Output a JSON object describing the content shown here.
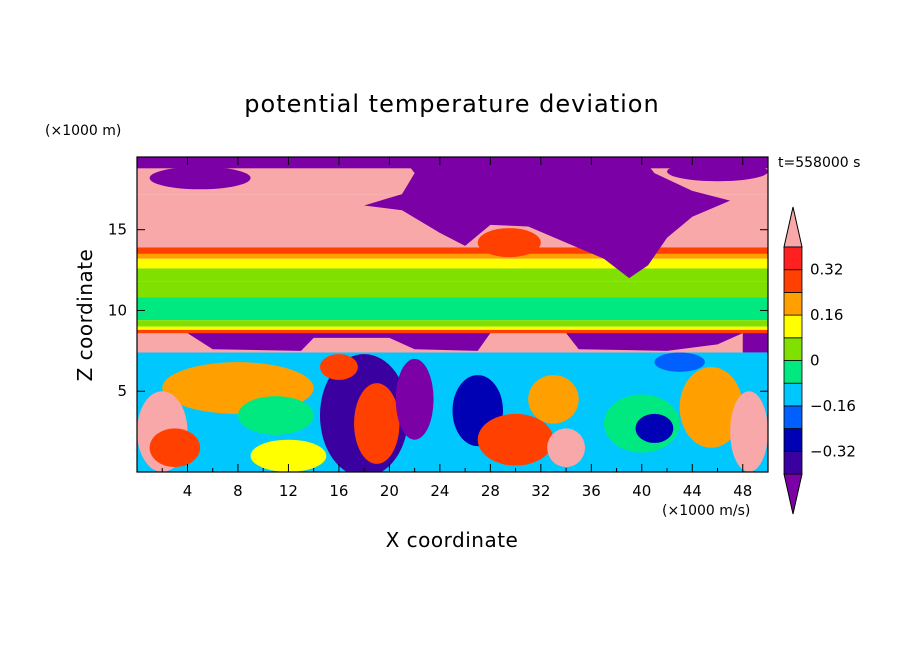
{
  "chart_data": {
    "type": "heatmap",
    "title": "potential temperature deviation",
    "xlabel": "X coordinate",
    "ylabel": "Z coordinate",
    "x_unit": "(×1000 m/s)",
    "y_unit": "(×1000 m)",
    "time_label": "t=558000 s",
    "xlim": [
      0,
      50
    ],
    "ylim": [
      0,
      19.5
    ],
    "x_ticks": [
      4,
      8,
      12,
      16,
      20,
      24,
      28,
      32,
      36,
      40,
      44,
      48
    ],
    "x_tick_labels": [
      "4",
      "8",
      "12",
      "16",
      "20",
      "24",
      "28",
      "32",
      "36",
      "40",
      "44",
      "48"
    ],
    "y_ticks": [
      5,
      10,
      15
    ],
    "y_tick_labels": [
      "5",
      "10",
      "15"
    ],
    "colorbar": {
      "levels": [
        -0.4,
        -0.32,
        -0.24,
        -0.16,
        -0.08,
        0,
        0.08,
        0.16,
        0.24,
        0.32,
        0.4
      ],
      "labels": [
        {
          "value": 0.32,
          "text": "0.32"
        },
        {
          "value": 0.16,
          "text": "0.16"
        },
        {
          "value": 0,
          "text": "0"
        },
        {
          "value": -0.16,
          "text": "−0.16"
        },
        {
          "value": -0.32,
          "text": "−0.32"
        }
      ],
      "colors": [
        "#7b00a6",
        "#3a00a0",
        "#0000b4",
        "#0060ff",
        "#00c8ff",
        "#00e880",
        "#80e000",
        "#ffff00",
        "#ffa000",
        "#ff4000",
        "#ff2020",
        "#f8a8a8"
      ]
    },
    "bands": [
      {
        "z0": 19.5,
        "z1": 17.2,
        "color": "#f8a8a8"
      },
      {
        "z0": 17.2,
        "z1": 13.9,
        "color": "#f8a8a8"
      },
      {
        "z0": 13.9,
        "z1": 13.5,
        "color": "#ff4000"
      },
      {
        "z0": 13.5,
        "z1": 13.2,
        "color": "#ffa000"
      },
      {
        "z0": 13.2,
        "z1": 12.6,
        "color": "#ffff00"
      },
      {
        "z0": 12.6,
        "z1": 11.8,
        "color": "#80e000"
      },
      {
        "z0": 11.8,
        "z1": 10.8,
        "color": "#80e000"
      },
      {
        "z0": 10.8,
        "z1": 9.4,
        "color": "#00e880"
      },
      {
        "z0": 9.4,
        "z1": 9.0,
        "color": "#80e000"
      },
      {
        "z0": 9.0,
        "z1": 8.8,
        "color": "#ffff00"
      },
      {
        "z0": 8.8,
        "z1": 8.6,
        "color": "#ff4000"
      },
      {
        "z0": 8.6,
        "z1": 7.4,
        "color": "#7b00a6"
      },
      {
        "z0": 7.4,
        "z1": 0,
        "color": "#00c8ff"
      }
    ],
    "regions": [
      {
        "type": "rect",
        "x0": 0,
        "x1": 50,
        "z0": 19.5,
        "z1": 18.8,
        "color": "#7b00a6"
      },
      {
        "type": "ellipse",
        "cx": 5,
        "cz": 18.2,
        "rx": 4,
        "rz": 0.7,
        "color": "#7b00a6"
      },
      {
        "type": "ellipse",
        "cx": 46,
        "cz": 18.6,
        "rx": 4,
        "rz": 0.6,
        "color": "#7b00a6"
      },
      {
        "type": "poly",
        "color": "#7b00a6",
        "points": [
          [
            21,
            19.5
          ],
          [
            40,
            19.5
          ],
          [
            41,
            18.5
          ],
          [
            44,
            17.4
          ],
          [
            47,
            16.8
          ],
          [
            44,
            15.8
          ],
          [
            42,
            14.5
          ],
          [
            40.5,
            12.8
          ],
          [
            39,
            12.0
          ],
          [
            37,
            13.2
          ],
          [
            34,
            14.2
          ],
          [
            31,
            15.2
          ],
          [
            28,
            15.3
          ],
          [
            26,
            14.0
          ],
          [
            24,
            14.8
          ],
          [
            21,
            16.2
          ],
          [
            18,
            16.5
          ],
          [
            21,
            17.2
          ],
          [
            22,
            18.5
          ]
        ]
      },
      {
        "type": "ellipse",
        "cx": 29.5,
        "cz": 14.2,
        "rx": 2.5,
        "rz": 0.9,
        "color": "#ff4000"
      },
      {
        "type": "poly",
        "color": "#f8a8a8",
        "points": [
          [
            0,
            8.6
          ],
          [
            4,
            8.6
          ],
          [
            6,
            7.6
          ],
          [
            13,
            7.5
          ],
          [
            14,
            8.3
          ],
          [
            20,
            8.3
          ],
          [
            22,
            7.6
          ],
          [
            27,
            7.5
          ],
          [
            28,
            8.6
          ],
          [
            34,
            8.6
          ],
          [
            35,
            7.6
          ],
          [
            42,
            7.5
          ],
          [
            46,
            7.9
          ],
          [
            48,
            8.6
          ],
          [
            48,
            7.4
          ],
          [
            0,
            7.4
          ]
        ]
      },
      {
        "type": "ellipse",
        "cx": 8,
        "cz": 5.2,
        "rx": 6,
        "rz": 1.6,
        "color": "#ffa000"
      },
      {
        "type": "ellipse",
        "cx": 11,
        "cz": 3.5,
        "rx": 3,
        "rz": 1.2,
        "color": "#00e880"
      },
      {
        "type": "ellipse",
        "cx": 2,
        "cz": 2.5,
        "rx": 2,
        "rz": 2.5,
        "color": "#f8a8a8"
      },
      {
        "type": "ellipse",
        "cx": 3,
        "cz": 1.5,
        "rx": 2,
        "rz": 1.2,
        "color": "#ff4000"
      },
      {
        "type": "ellipse",
        "cx": 12,
        "cz": 1.0,
        "rx": 3,
        "rz": 1.0,
        "color": "#ffff00"
      },
      {
        "type": "ellipse",
        "cx": 18,
        "cz": 3.5,
        "rx": 3.5,
        "rz": 3.8,
        "color": "#3a00a0"
      },
      {
        "type": "ellipse",
        "cx": 19,
        "cz": 3.0,
        "rx": 1.8,
        "rz": 2.5,
        "color": "#ff4000"
      },
      {
        "type": "ellipse",
        "cx": 22,
        "cz": 4.5,
        "rx": 1.5,
        "rz": 2.5,
        "color": "#7b00a6"
      },
      {
        "type": "ellipse",
        "cx": 16,
        "cz": 6.5,
        "rx": 1.5,
        "rz": 0.8,
        "color": "#ff4000"
      },
      {
        "type": "ellipse",
        "cx": 27,
        "cz": 3.8,
        "rx": 2,
        "rz": 2.2,
        "color": "#0000b4"
      },
      {
        "type": "ellipse",
        "cx": 30,
        "cz": 2.0,
        "rx": 3,
        "rz": 1.6,
        "color": "#ff4000"
      },
      {
        "type": "ellipse",
        "cx": 33,
        "cz": 4.5,
        "rx": 2,
        "rz": 1.5,
        "color": "#ffa000"
      },
      {
        "type": "ellipse",
        "cx": 34,
        "cz": 1.5,
        "rx": 1.5,
        "rz": 1.2,
        "color": "#f8a8a8"
      },
      {
        "type": "ellipse",
        "cx": 40,
        "cz": 3.0,
        "rx": 3,
        "rz": 1.8,
        "color": "#00e880"
      },
      {
        "type": "ellipse",
        "cx": 41,
        "cz": 2.7,
        "rx": 1.5,
        "rz": 0.9,
        "color": "#0000b4"
      },
      {
        "type": "ellipse",
        "cx": 45.5,
        "cz": 4.0,
        "rx": 2.5,
        "rz": 2.5,
        "color": "#ffa000"
      },
      {
        "type": "ellipse",
        "cx": 48.5,
        "cz": 2.5,
        "rx": 1.5,
        "rz": 2.5,
        "color": "#f8a8a8"
      },
      {
        "type": "ellipse",
        "cx": 43,
        "cz": 6.8,
        "rx": 2,
        "rz": 0.6,
        "color": "#0060ff"
      }
    ]
  }
}
